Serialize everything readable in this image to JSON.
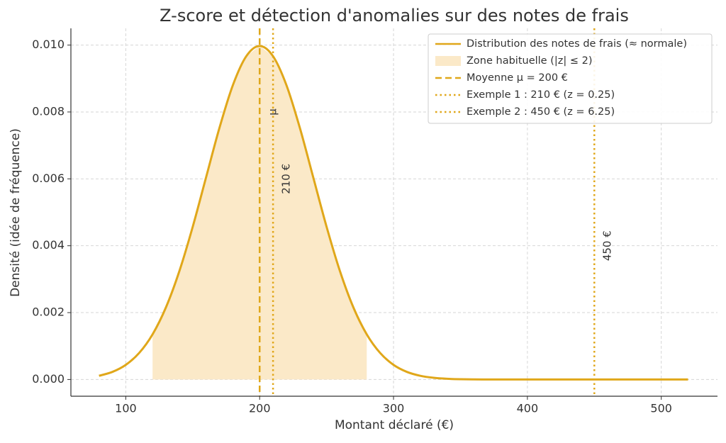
{
  "chart_data": {
    "type": "line",
    "title": "Z-score et détection d'anomalies sur des notes de frais",
    "x_label": "Montant déclaré (€)",
    "y_label": "Densité (idée de fréquence)",
    "x": [
      80,
      90,
      100,
      110,
      120,
      130,
      140,
      150,
      160,
      170,
      180,
      190,
      200,
      210,
      220,
      230,
      240,
      250,
      260,
      270,
      280,
      290,
      300,
      310,
      320,
      330,
      340,
      350,
      360,
      370,
      380,
      390,
      400,
      410,
      420,
      430,
      440,
      450,
      460,
      470,
      480,
      490,
      500,
      510,
      520
    ],
    "series": [
      {
        "name": "Distribution des notes de frais (≈ normale)",
        "color": "#e0a71a",
        "values": [
          0.000111,
          0.000227,
          0.000438,
          0.000794,
          0.00135,
          0.002157,
          0.003238,
          0.004566,
          0.006049,
          0.007528,
          0.008802,
          0.009667,
          0.009974,
          0.009667,
          0.008802,
          0.007528,
          0.006049,
          0.004566,
          0.003238,
          0.002157,
          0.00135,
          0.000794,
          0.000438,
          0.000227,
          0.000111,
          5.07e-05,
          2.18e-05,
          8.9e-06,
          3.4e-06,
          1.2e-06,
          0,
          0,
          0,
          0,
          0,
          0,
          0,
          0,
          0,
          0,
          0,
          0,
          0,
          0,
          0
        ]
      }
    ],
    "zone": {
      "name": "Zone habituelle (|z| ≤ 2)",
      "color": "#fbe9c8",
      "range": [
        120,
        280
      ]
    },
    "vlines": [
      {
        "name": "Moyenne μ = 200 €",
        "x": 200,
        "style": "dashed",
        "color": "#e0a71a"
      },
      {
        "name": "Exemple 1 : 210 € (z = 0.25)",
        "x": 210,
        "style": "dotted",
        "color": "#e0a71a"
      },
      {
        "name": "Exemple 2 : 450 € (z = 6.25)",
        "x": 450,
        "style": "dotted",
        "color": "#e0a71a"
      }
    ],
    "annotations": [
      {
        "text": "μ",
        "x": 210,
        "y": 0.008
      },
      {
        "text": "210 €",
        "x": 220,
        "y": 0.006
      },
      {
        "text": "450 €",
        "x": 460,
        "y": 0.004
      }
    ],
    "xlim": [
      59,
      542
    ],
    "ylim": [
      -0.0005,
      0.0105
    ],
    "xticks": [
      100,
      200,
      300,
      400,
      500
    ],
    "yticks": [
      {
        "value": 0,
        "label": "0.000"
      },
      {
        "value": 0.002,
        "label": "0.002"
      },
      {
        "value": 0.004,
        "label": "0.004"
      },
      {
        "value": 0.006,
        "label": "0.006"
      },
      {
        "value": 0.008,
        "label": "0.008"
      },
      {
        "value": 0.01,
        "label": "0.010"
      }
    ],
    "grid": true,
    "legend": "upper right"
  }
}
